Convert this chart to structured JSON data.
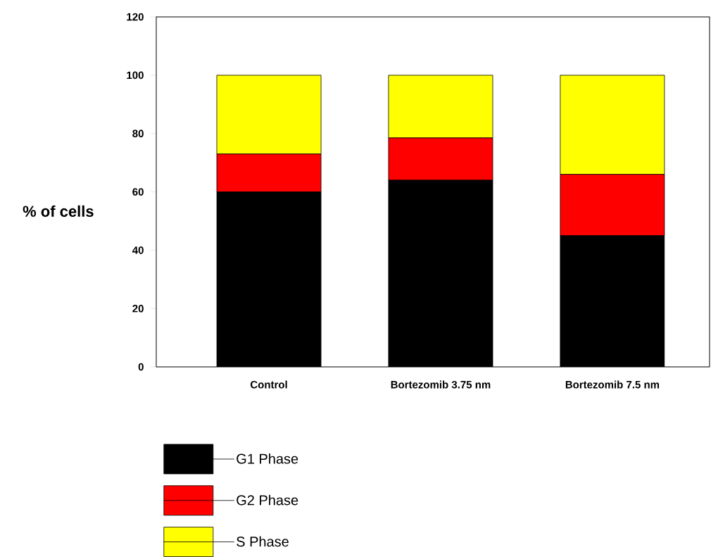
{
  "chart_data": {
    "type": "bar",
    "stacked": true,
    "ylabel": "% of cells",
    "categories": [
      "Control",
      "Bortezomib 3.75 nm",
      "Bortezomib 7.5 nm"
    ],
    "series": [
      {
        "name": "G1 Phase",
        "color": "#000000",
        "values": [
          60,
          64,
          45
        ]
      },
      {
        "name": "G2 Phase",
        "color": "#ff0000",
        "values": [
          13,
          14.5,
          21
        ]
      },
      {
        "name": "S Phase",
        "color": "#ffff00",
        "values": [
          27,
          21.5,
          34
        ]
      }
    ],
    "ylim": [
      0,
      120
    ],
    "yticks": [
      0,
      20,
      40,
      60,
      80,
      100,
      120
    ],
    "legend": "bottom left"
  }
}
